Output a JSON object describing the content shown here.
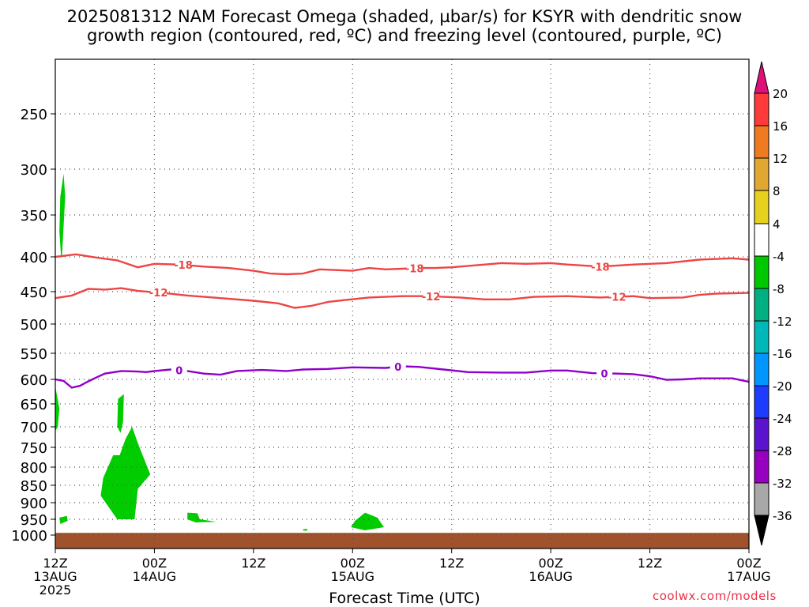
{
  "title": {
    "line1": "2025081312 NAM Forecast Omega (shaded, µbar/s) for KSYR with dendritic snow",
    "line2": "growth region (contoured, red, ºC) and freezing level (contoured, purple, ºC)"
  },
  "credit": "coolwx.com/models",
  "chart_data": {
    "type": "heatmap",
    "xlabel": "Forecast Time (UTC)",
    "ylabel": "",
    "x_range_hours": [
      0,
      84
    ],
    "y_scale": "pressure (log-like, inverted)",
    "y_ticks": [
      250,
      300,
      350,
      400,
      450,
      500,
      550,
      600,
      650,
      700,
      750,
      800,
      850,
      900,
      950,
      1000
    ],
    "y_range_mb": [
      200,
      1030
    ],
    "x_ticks": [
      {
        "hour": 0,
        "lines": [
          "12Z",
          "13AUG",
          "2025"
        ]
      },
      {
        "hour": 12,
        "lines": [
          "00Z",
          "14AUG"
        ]
      },
      {
        "hour": 24,
        "lines": [
          "12Z"
        ]
      },
      {
        "hour": 36,
        "lines": [
          "00Z",
          "15AUG"
        ]
      },
      {
        "hour": 48,
        "lines": [
          "12Z"
        ]
      },
      {
        "hour": 60,
        "lines": [
          "00Z",
          "16AUG"
        ]
      },
      {
        "hour": 72,
        "lines": [
          "12Z"
        ]
      },
      {
        "hour": 84,
        "lines": [
          "00Z",
          "17AUG"
        ]
      }
    ],
    "grid": true,
    "colorbar": {
      "placement": "right",
      "labels": [
        20,
        16,
        12,
        8,
        4,
        -4,
        -8,
        -12,
        -16,
        -20,
        -24,
        -28,
        -32,
        -36
      ],
      "colors": [
        "#ff3a3a",
        "#f07a20",
        "#e0a830",
        "#e6d21e",
        "#ffffff",
        "#00c800",
        "#00b080",
        "#00b8b8",
        "#0096ff",
        "#1e3cff",
        "#5a14d0",
        "#9800c0",
        "#a8a8a8"
      ],
      "top_arrow_color": "#e0107a",
      "bottom_arrow_color": "#000000"
    },
    "contours": [
      {
        "label": "-18",
        "color": "#ee4444",
        "label_hours": [
          15.5,
          43.5,
          66
        ],
        "points": [
          [
            0,
            400
          ],
          [
            2.5,
            397
          ],
          [
            5,
            401
          ],
          [
            7.5,
            405
          ],
          [
            10,
            415
          ],
          [
            12,
            410
          ],
          [
            15,
            411
          ],
          [
            18,
            414
          ],
          [
            21,
            416
          ],
          [
            24,
            420
          ],
          [
            26,
            424
          ],
          [
            28,
            425
          ],
          [
            30,
            424
          ],
          [
            32,
            418
          ],
          [
            34,
            419
          ],
          [
            36,
            420
          ],
          [
            38,
            416
          ],
          [
            40,
            418
          ],
          [
            42,
            417
          ],
          [
            44,
            416
          ],
          [
            46,
            416
          ],
          [
            48,
            415
          ],
          [
            51,
            412
          ],
          [
            54,
            409
          ],
          [
            57,
            410
          ],
          [
            60,
            409
          ],
          [
            62,
            411
          ],
          [
            66,
            414
          ],
          [
            70,
            411
          ],
          [
            74,
            409
          ],
          [
            78,
            404
          ],
          [
            82,
            402
          ],
          [
            84,
            404
          ]
        ]
      },
      {
        "label": "-12",
        "color": "#ee4444",
        "label_hours": [
          12.5,
          45.5,
          68
        ],
        "points": [
          [
            0,
            460
          ],
          [
            2,
            456
          ],
          [
            4,
            446
          ],
          [
            6,
            447
          ],
          [
            8,
            445
          ],
          [
            10,
            449
          ],
          [
            13,
            452
          ],
          [
            16,
            456
          ],
          [
            20,
            460
          ],
          [
            24,
            464
          ],
          [
            27,
            468
          ],
          [
            29,
            475
          ],
          [
            31,
            472
          ],
          [
            33,
            466
          ],
          [
            35,
            463
          ],
          [
            38,
            459
          ],
          [
            42,
            457
          ],
          [
            45,
            457
          ],
          [
            49,
            459
          ],
          [
            52,
            462
          ],
          [
            55,
            462
          ],
          [
            58,
            458
          ],
          [
            62,
            457
          ],
          [
            66,
            459
          ],
          [
            70,
            457
          ],
          [
            72,
            460
          ],
          [
            76,
            459
          ],
          [
            78,
            455
          ],
          [
            80,
            453
          ],
          [
            84,
            452
          ]
        ]
      },
      {
        "label": "0",
        "color": "#9000c8",
        "label_hours": [
          15,
          41.5,
          66.5
        ],
        "points": [
          [
            0,
            600
          ],
          [
            1,
            603
          ],
          [
            2,
            617
          ],
          [
            3,
            613
          ],
          [
            4,
            604
          ],
          [
            5,
            596
          ],
          [
            6,
            589
          ],
          [
            8,
            584
          ],
          [
            10,
            585
          ],
          [
            11,
            586
          ],
          [
            12,
            584
          ],
          [
            14,
            581
          ],
          [
            16,
            584
          ],
          [
            18,
            589
          ],
          [
            20,
            591
          ],
          [
            22,
            584
          ],
          [
            25,
            582
          ],
          [
            28,
            584
          ],
          [
            30,
            581
          ],
          [
            33,
            580
          ],
          [
            36,
            577
          ],
          [
            40,
            578
          ],
          [
            42,
            575
          ],
          [
            44,
            576
          ],
          [
            47,
            581
          ],
          [
            50,
            586
          ],
          [
            54,
            587
          ],
          [
            57,
            587
          ],
          [
            60,
            583
          ],
          [
            62,
            583
          ],
          [
            65,
            588
          ],
          [
            68,
            589
          ],
          [
            70,
            590
          ],
          [
            72,
            594
          ],
          [
            74,
            601
          ],
          [
            76,
            600
          ],
          [
            78,
            598
          ],
          [
            82,
            598
          ],
          [
            84,
            605
          ]
        ]
      }
    ],
    "omega_shading": [
      {
        "value_range": [
          -8,
          -4
        ],
        "color": "#00cc00",
        "regions": [
          [
            [
              0.8,
              400
            ],
            [
              1.2,
              330
            ],
            [
              1.0,
              305
            ],
            [
              0.6,
              330
            ],
            [
              0.5,
              370
            ],
            [
              0.7,
              400
            ]
          ],
          [
            [
              0,
              615
            ],
            [
              0.5,
              660
            ],
            [
              0.3,
              700
            ],
            [
              0,
              710
            ]
          ],
          [
            [
              7.6,
              640
            ],
            [
              8.3,
              630
            ],
            [
              8.2,
              690
            ],
            [
              7.9,
              715
            ],
            [
              7.5,
              700
            ]
          ],
          [
            [
              9.3,
              700
            ],
            [
              10.0,
              740
            ],
            [
              11.5,
              820
            ],
            [
              10.0,
              860
            ],
            [
              9.6,
              950
            ],
            [
              7.5,
              950
            ],
            [
              5.5,
              880
            ],
            [
              5.8,
              830
            ],
            [
              7.0,
              770
            ],
            [
              7.8,
              770
            ],
            [
              8.5,
              730
            ]
          ],
          [
            [
              0.5,
              945
            ],
            [
              1.4,
              940
            ],
            [
              1.5,
              955
            ],
            [
              0.6,
              965
            ]
          ],
          [
            [
              16.0,
              930
            ],
            [
              17.2,
              932
            ],
            [
              17.5,
              950
            ],
            [
              19.5,
              958
            ],
            [
              17,
              960
            ],
            [
              16.0,
              950
            ]
          ],
          [
            [
              30.0,
              982
            ],
            [
              30.5,
              980
            ],
            [
              30.5,
              986
            ],
            [
              30.0,
              986
            ]
          ],
          [
            [
              36.3,
              955
            ],
            [
              37.5,
              930
            ],
            [
              39.0,
              945
            ],
            [
              39.8,
              975
            ],
            [
              37.5,
              985
            ],
            [
              35.8,
              975
            ]
          ]
        ]
      },
      {
        "value_range": "terrain (below ground)",
        "color": "#a0522d",
        "region": "below surface pressure approx 993 mb"
      }
    ]
  }
}
